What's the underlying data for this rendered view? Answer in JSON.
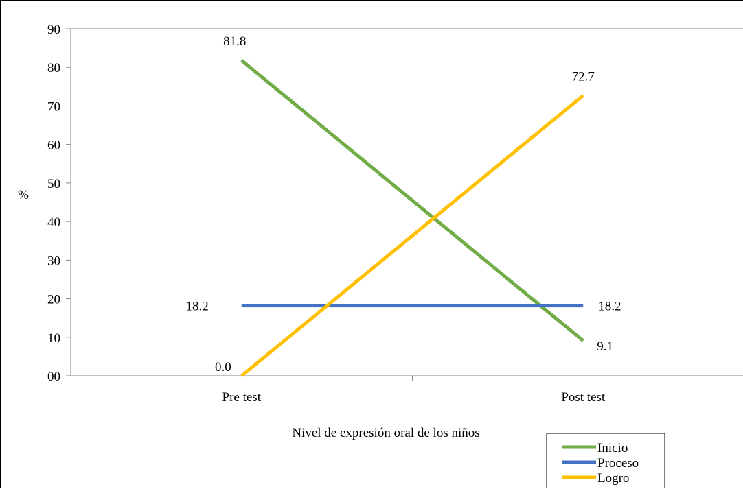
{
  "chart_data": {
    "type": "line",
    "categories": [
      "Pre test",
      "Post test"
    ],
    "series": [
      {
        "name": "Inicio",
        "values": [
          81.8,
          9.1
        ],
        "labels": [
          "81.8",
          "9.1"
        ],
        "color": "#70AD47"
      },
      {
        "name": "Proceso",
        "values": [
          18.2,
          18.2
        ],
        "labels": [
          "18.2",
          "18.2"
        ],
        "color": "#4472C4"
      },
      {
        "name": "Logro",
        "values": [
          0.0,
          72.7
        ],
        "labels": [
          "0.0",
          "72.7"
        ],
        "color": "#FFC000"
      }
    ],
    "y_ticks": [
      0,
      10,
      20,
      30,
      40,
      50,
      60,
      70,
      80,
      90
    ],
    "y_tick_labels": [
      "00",
      "10",
      "20",
      "30",
      "40",
      "50",
      "60",
      "70",
      "80",
      "90"
    ],
    "ylim": [
      0,
      90
    ],
    "xlabel": "Nivel de expresión oral de los niños",
    "ylabel": "%",
    "grid": false,
    "legend_position": "bottom-right"
  }
}
